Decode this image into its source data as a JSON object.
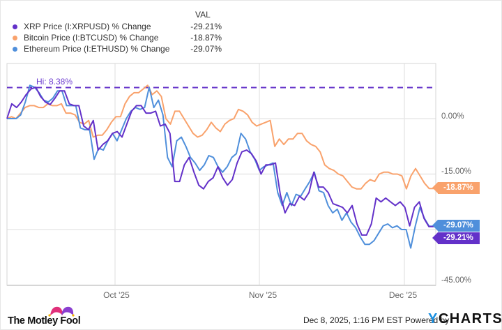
{
  "legend": {
    "header": "VAL",
    "items": [
      {
        "name": "XRP Price (I:XRPUSD) % Change",
        "value": "-29.21%",
        "color": "#6331c9"
      },
      {
        "name": "Bitcoin Price (I:BTCUSD) % Change",
        "value": "-18.87%",
        "color": "#f9a26c"
      },
      {
        "name": "Ethereum Price (I:ETHUSD) % Change",
        "value": "-29.07%",
        "color": "#4f8fdb"
      }
    ]
  },
  "hi_label": "Hi: 8.38%",
  "y_ticks": [
    "0.00%",
    "-15.00%",
    "-45.00%"
  ],
  "x_ticks": [
    "Oct '25",
    "Nov '25",
    "Dec '25"
  ],
  "end_tags": {
    "btc": "-18.87%",
    "eth": "-29.07%",
    "xrp": "-29.21%"
  },
  "footer": {
    "brand": "The Motley Fool",
    "timestamp": "Dec 8, 2025, 1:16 PM EST Powered by",
    "ycharts_y": "Y",
    "ycharts_rest": "CHARTS"
  },
  "chart_data": {
    "type": "line",
    "title": "",
    "xlabel": "",
    "ylabel": "% Change",
    "ylim": [
      -45,
      12
    ],
    "x_ticks": [
      "Oct '25",
      "Nov '25",
      "Dec '25"
    ],
    "y_ticks": [
      0,
      -15,
      -30,
      -45
    ],
    "grid": true,
    "legend_position": "top-left",
    "annotations": [
      {
        "type": "hline",
        "y": 8.38,
        "label": "Hi: 8.38%",
        "color": "#6331c9",
        "style": "dashed"
      }
    ],
    "series": [
      {
        "name": "XRP Price (I:XRPUSD) % Change",
        "color": "#6331c9",
        "final": -29.21,
        "values": [
          0,
          4,
          3,
          4.5,
          6.5,
          8,
          8.5,
          6,
          4.5,
          3.8,
          5.5,
          7.5,
          7.5,
          4,
          3.5,
          3.5,
          -2,
          -3,
          -0.5,
          -8.5,
          -7,
          -6,
          -4,
          -3.5,
          -5,
          -1.5,
          2,
          3.5,
          3.5,
          1.5,
          1.5,
          2,
          -2,
          -1.5,
          -4,
          -17,
          -17,
          -12.5,
          -10.5,
          -14.5,
          -18,
          -19,
          -17,
          -16,
          -13,
          -16,
          -18,
          -16.5,
          -12,
          -9,
          -8.5,
          -9.5,
          -11.5,
          -15,
          -12.5,
          -12.5,
          -12,
          -20.5,
          -25.5,
          -23,
          -23.5,
          -21,
          -22,
          -20,
          -14.5,
          -18.5,
          -18.5,
          -20,
          -23,
          -23.5,
          -24,
          -25.5,
          -23.5,
          -28.5,
          -31.5,
          -31.5,
          -28.5,
          -21.5,
          -22.5,
          -21.5,
          -22.5,
          -23.5,
          -22.5,
          -24,
          -29,
          -24,
          -22.5,
          -27,
          -29.2,
          -29.2
        ]
      },
      {
        "name": "Bitcoin Price (I:BTCUSD) % Change",
        "color": "#f9a26c",
        "final": -18.87,
        "values": [
          0,
          0.5,
          0,
          1.5,
          3,
          3.5,
          3.5,
          3,
          3,
          4,
          3.5,
          3.5,
          4,
          1.5,
          1.5,
          1,
          -1,
          -1.5,
          -0.5,
          -5,
          -4.5,
          -4.5,
          -3,
          -1,
          0.5,
          0.5,
          4,
          6,
          7,
          7,
          8,
          9,
          6.5,
          7.5,
          6,
          0,
          -1.5,
          2,
          2,
          0,
          -2,
          -4,
          -5,
          -4.5,
          -3,
          -1,
          -2.5,
          -3.5,
          -1.5,
          -0.5,
          0,
          2.5,
          2,
          1,
          -1,
          -2,
          -1.5,
          -1,
          -0.5,
          -7.5,
          -5.5,
          -7,
          -5.5,
          -5.5,
          -4,
          -4,
          -6,
          -7,
          -7.5,
          -9,
          -12.5,
          -13.5,
          -14,
          -15,
          -15.5,
          -17,
          -18.5,
          -19,
          -19,
          -17.5,
          -16.5,
          -17,
          -15,
          -14.5,
          -14.5,
          -15,
          -15,
          -15.5,
          -19,
          -15.5,
          -13.5,
          -15.5,
          -17.5,
          -18.9,
          -18.9
        ]
      },
      {
        "name": "Ethereum Price (I:ETHUSD) % Change",
        "color": "#4f8fdb",
        "final": -29.07,
        "values": [
          0,
          0,
          0,
          1,
          4.5,
          9,
          8.5,
          7,
          5,
          4.5,
          5.5,
          7.5,
          7.5,
          3.5,
          3.5,
          3.5,
          -2.5,
          -3,
          -3,
          -11,
          -8,
          -8.5,
          -6,
          -4,
          -6,
          -3,
          0,
          2,
          3,
          2.5,
          3,
          8.5,
          3,
          5,
          1,
          -10.5,
          -13,
          -6,
          -5,
          -7.5,
          -10.5,
          -12,
          -14,
          -12.5,
          -10,
          -10.5,
          -13,
          -14.5,
          -13,
          -10.5,
          -9.5,
          -4,
          -5.5,
          -9,
          -11,
          -14,
          -13,
          -12.5,
          -12,
          -20,
          -23.5,
          -20,
          -23.5,
          -20.5,
          -21,
          -19,
          -17,
          -14.5,
          -19.5,
          -20,
          -23.5,
          -25.5,
          -24.5,
          -27.5,
          -25.5,
          -28,
          -29.5,
          -32,
          -34,
          -34,
          -33,
          -31,
          -29,
          -28.5,
          -29.5,
          -29,
          -30,
          -30,
          -35,
          -29,
          -24,
          -27,
          -29.1,
          -29.1
        ]
      }
    ]
  }
}
